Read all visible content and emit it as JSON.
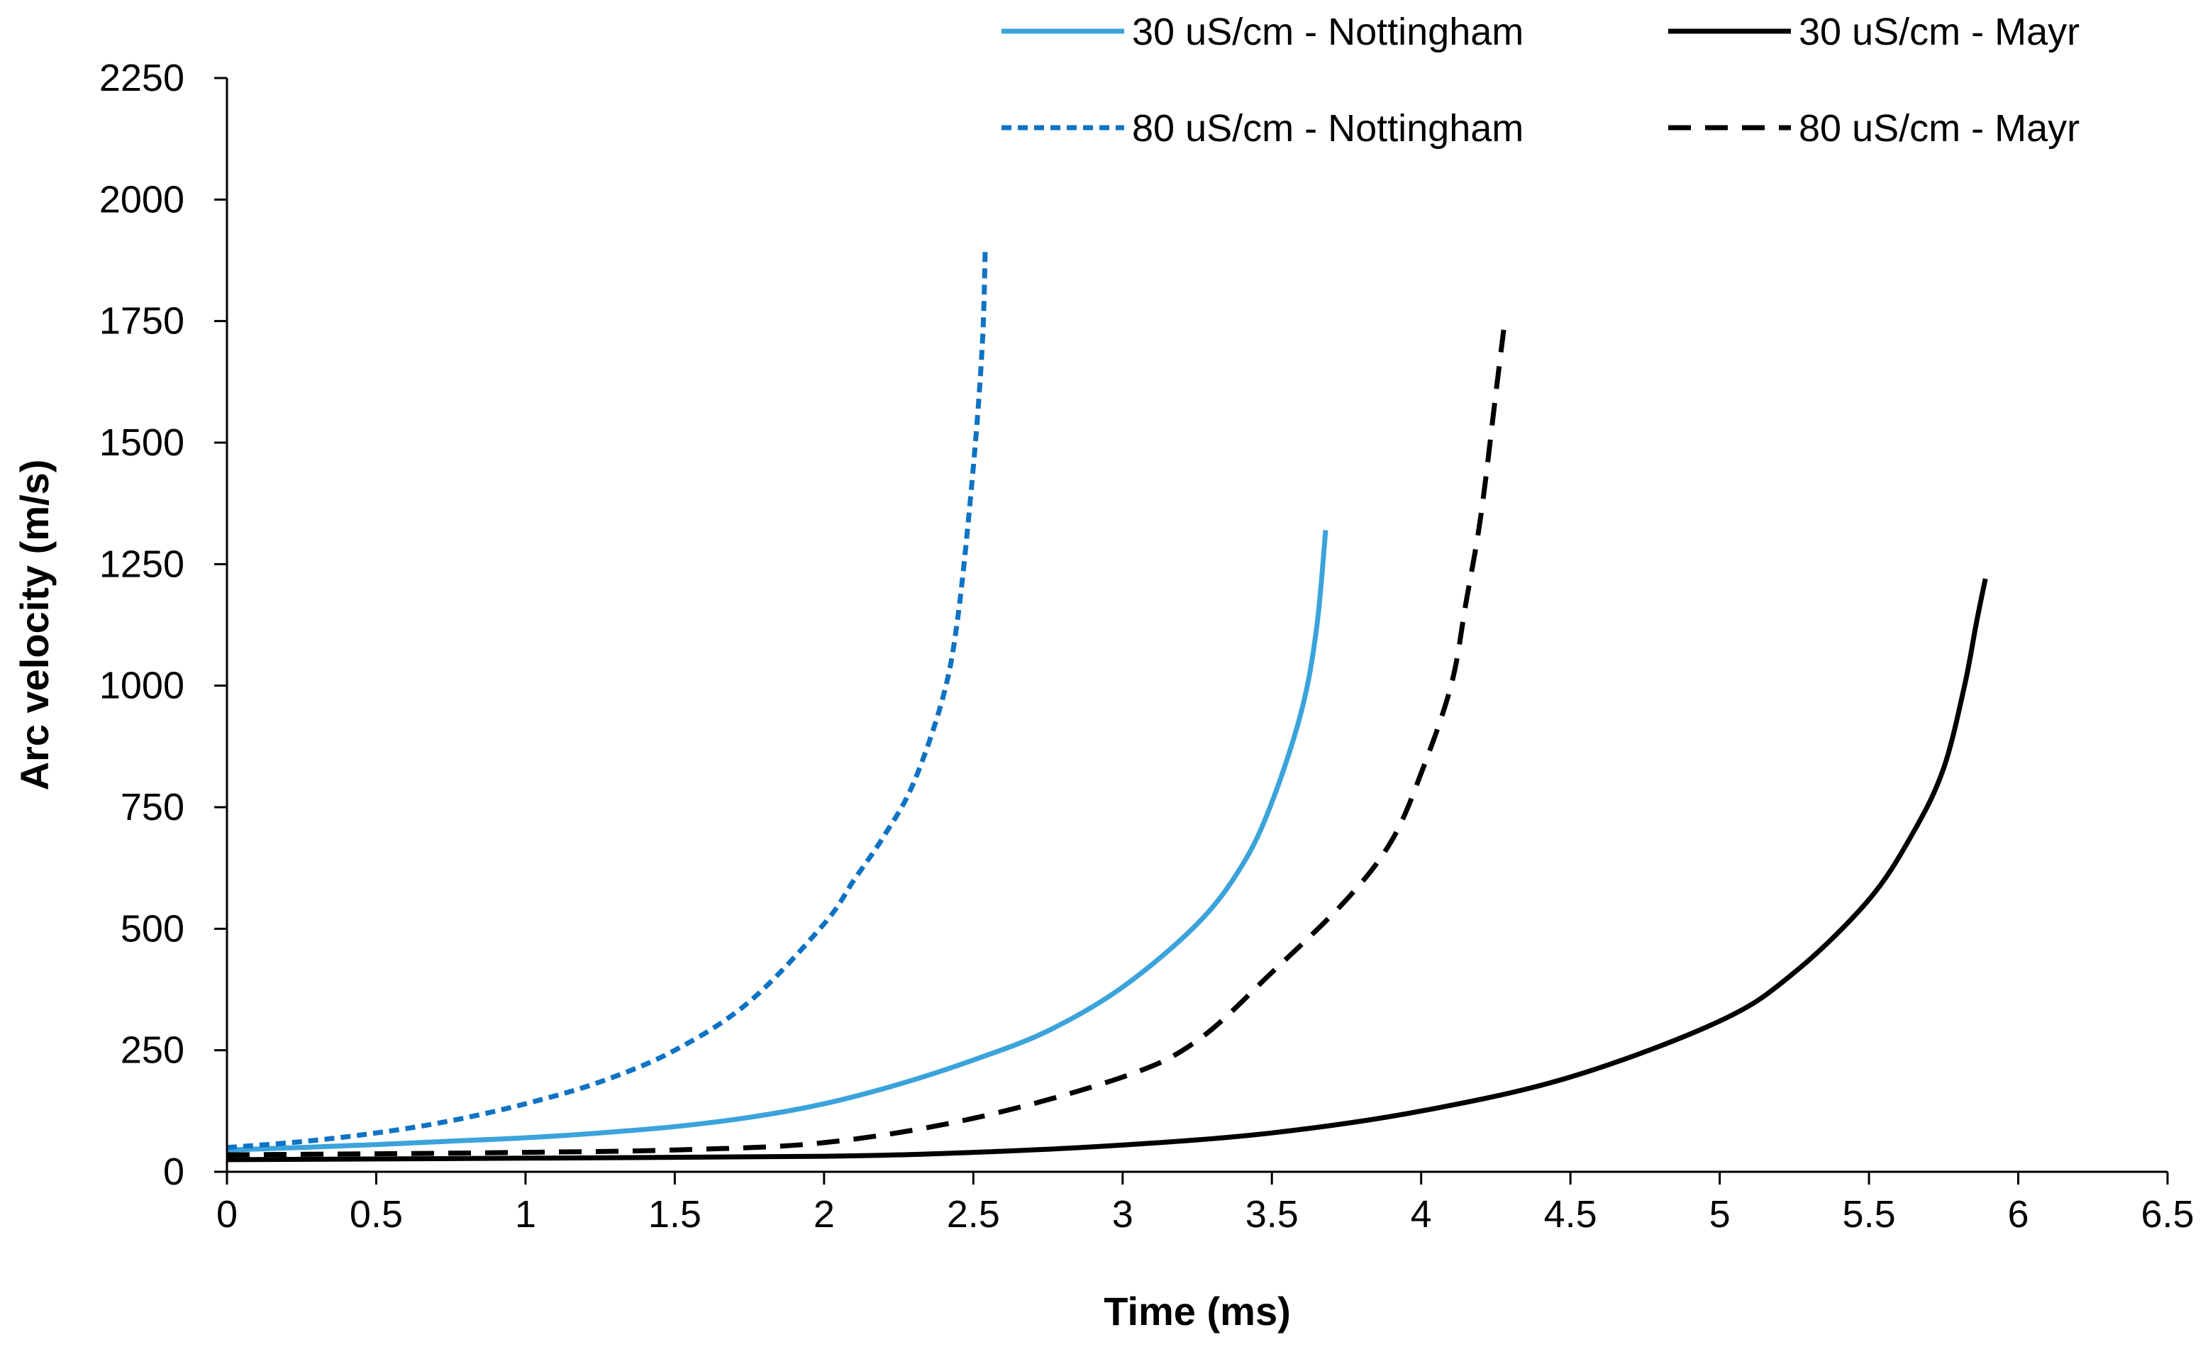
{
  "chart_data": {
    "type": "line",
    "title": "",
    "xlabel": "Time (ms)",
    "ylabel": "Arc velocity  (m/s)",
    "xlim": [
      0,
      6.5
    ],
    "ylim": [
      0,
      2250
    ],
    "x_ticks": [
      "0",
      "0.5",
      "1",
      "1.5",
      "2",
      "2.5",
      "3",
      "3.5",
      "4",
      "4.5",
      "5",
      "5.5",
      "6",
      "6.5"
    ],
    "y_ticks": [
      "0",
      "250",
      "500",
      "750",
      "1000",
      "1250",
      "1500",
      "1750",
      "2000",
      "2250"
    ],
    "x_tick_values": [
      0,
      0.5,
      1,
      1.5,
      2,
      2.5,
      3,
      3.5,
      4,
      4.5,
      5,
      5.5,
      6,
      6.5
    ],
    "y_tick_values": [
      0,
      250,
      500,
      750,
      1000,
      1250,
      1500,
      1750,
      2000,
      2250
    ],
    "grid": false,
    "legend_position": "top-right",
    "series": [
      {
        "name": "30 uS/cm - Nottingham",
        "color": "#3BA3DB",
        "style": "solid",
        "points": [
          [
            0,
            45
          ],
          [
            0.25,
            50
          ],
          [
            0.5,
            56
          ],
          [
            0.75,
            63
          ],
          [
            1,
            70
          ],
          [
            1.25,
            80
          ],
          [
            1.5,
            93
          ],
          [
            1.75,
            112
          ],
          [
            2,
            140
          ],
          [
            2.25,
            180
          ],
          [
            2.5,
            230
          ],
          [
            2.75,
            290
          ],
          [
            3,
            380
          ],
          [
            3.25,
            510
          ],
          [
            3.4,
            630
          ],
          [
            3.5,
            760
          ],
          [
            3.6,
            950
          ],
          [
            3.65,
            1120
          ],
          [
            3.68,
            1320
          ]
        ]
      },
      {
        "name": "80 uS/cm - Nottingham",
        "color": "#0E73C4",
        "style": "dotted",
        "points": [
          [
            0,
            50
          ],
          [
            0.25,
            62
          ],
          [
            0.5,
            80
          ],
          [
            0.75,
            105
          ],
          [
            1,
            140
          ],
          [
            1.25,
            185
          ],
          [
            1.5,
            250
          ],
          [
            1.75,
            350
          ],
          [
            2,
            510
          ],
          [
            2.1,
            600
          ],
          [
            2.2,
            690
          ],
          [
            2.3,
            800
          ],
          [
            2.4,
            980
          ],
          [
            2.45,
            1150
          ],
          [
            2.5,
            1450
          ],
          [
            2.53,
            1700
          ],
          [
            2.54,
            1900
          ]
        ]
      },
      {
        "name": "30 uS/cm - Mayr",
        "color": "#000000",
        "style": "solid",
        "points": [
          [
            0,
            25
          ],
          [
            1,
            28
          ],
          [
            2,
            32
          ],
          [
            2.5,
            40
          ],
          [
            3,
            55
          ],
          [
            3.5,
            80
          ],
          [
            4,
            125
          ],
          [
            4.5,
            195
          ],
          [
            5,
            310
          ],
          [
            5.25,
            410
          ],
          [
            5.5,
            560
          ],
          [
            5.65,
            700
          ],
          [
            5.75,
            830
          ],
          [
            5.82,
            1000
          ],
          [
            5.86,
            1130
          ],
          [
            5.89,
            1220
          ]
        ]
      },
      {
        "name": "80 uS/cm - Mayr",
        "color": "#000000",
        "style": "dashed",
        "points": [
          [
            0,
            35
          ],
          [
            0.5,
            37
          ],
          [
            1,
            40
          ],
          [
            1.5,
            45
          ],
          [
            2,
            60
          ],
          [
            2.5,
            110
          ],
          [
            3,
            195
          ],
          [
            3.25,
            270
          ],
          [
            3.5,
            410
          ],
          [
            3.75,
            560
          ],
          [
            3.9,
            680
          ],
          [
            4,
            820
          ],
          [
            4.1,
            1000
          ],
          [
            4.15,
            1170
          ],
          [
            4.2,
            1350
          ],
          [
            4.25,
            1600
          ],
          [
            4.28,
            1750
          ]
        ]
      }
    ]
  }
}
